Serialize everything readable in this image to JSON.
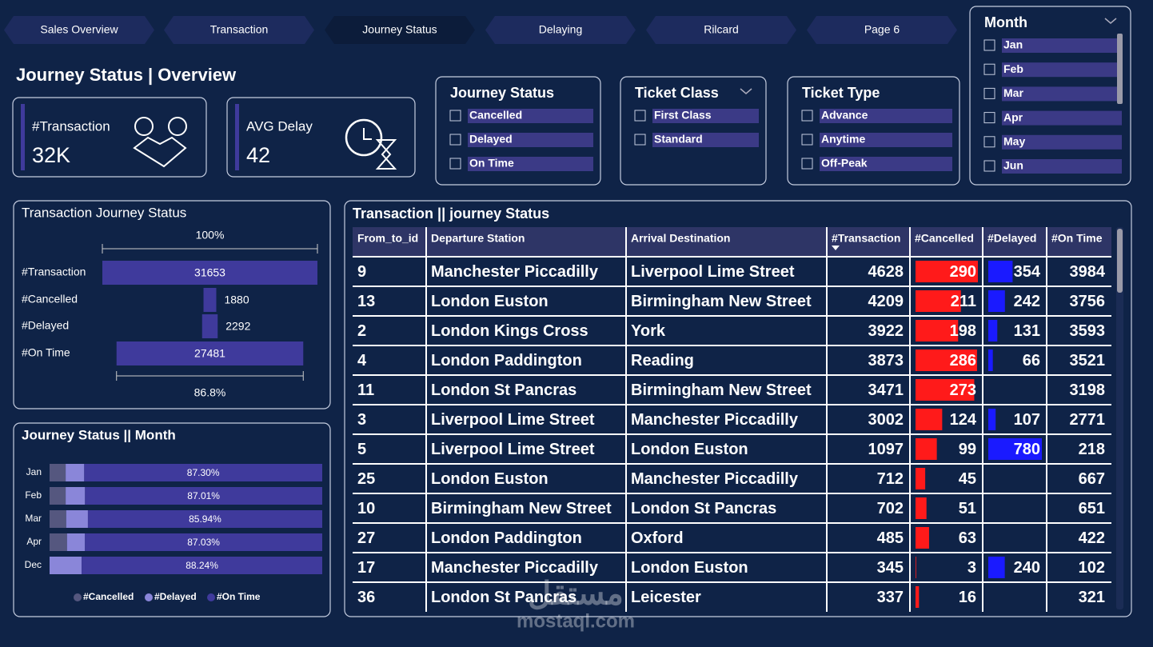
{
  "tabs": [
    "Sales Overview",
    "Transaction",
    "Journey Status",
    "Delaying",
    "Rilcard",
    "Page 6"
  ],
  "active_tab": 2,
  "header": {
    "title": "Journey Status | Overview"
  },
  "kpis": [
    {
      "label": "#Transaction",
      "value": "32K"
    },
    {
      "label": "AVG Delay",
      "value": "42"
    }
  ],
  "slicers": [
    {
      "title": "Journey Status",
      "items": [
        "Cancelled",
        "Delayed",
        "On Time"
      ]
    },
    {
      "title": "Ticket Class",
      "items": [
        "First Class",
        "Standard"
      ]
    },
    {
      "title": "Ticket Type",
      "items": [
        "Advance",
        "Anytime",
        "Off-Peak"
      ]
    },
    {
      "title": "Month",
      "items": [
        "Jan",
        "Feb",
        "Mar",
        "Apr",
        "May",
        "Jun"
      ]
    }
  ],
  "funnel_chart": {
    "title": "Transaction Journey Status",
    "top_label": "100%",
    "bottom_label": "86.8%",
    "categories": [
      "#Transaction",
      "#Cancelled",
      "#Delayed",
      "#On Time"
    ],
    "values": [
      31653,
      1880,
      2292,
      27481
    ],
    "color": "#3f3a9c"
  },
  "month_chart": {
    "title": "Journey Status || Month",
    "categories": [
      "Jan",
      "Feb",
      "Mar",
      "Apr",
      "Dec"
    ],
    "series": [
      {
        "name": "#Cancelled",
        "color": "#55577f",
        "values": [
          5.9,
          5.9,
          6.1,
          6.4,
          0
        ]
      },
      {
        "name": "#Delayed",
        "color": "#8a86d9",
        "values": [
          6.8,
          7.09,
          7.96,
          6.57,
          11.76
        ]
      },
      {
        "name": "#On Time",
        "color": "#3f3a9c",
        "values": [
          87.3,
          87.01,
          85.94,
          87.03,
          88.24
        ],
        "value_labels": [
          "87.30%",
          "87.01%",
          "85.94%",
          "87.03%",
          "88.24%"
        ]
      }
    ]
  },
  "table": {
    "title": "Transaction || journey Status",
    "columns": [
      "From_to_id",
      "Departure Station",
      "Arrival Destination",
      "#Transaction",
      "#Cancelled",
      "#Delayed",
      "#On Time"
    ],
    "cancelled_bar_color": "#ff1a1a",
    "delayed_bar_color": "#1a1aff",
    "rows": [
      [
        9,
        "Manchester Piccadilly",
        "Liverpool Lime Street",
        4628,
        290,
        354,
        3984
      ],
      [
        13,
        "London Euston",
        "Birmingham New Street",
        4209,
        211,
        242,
        3756
      ],
      [
        2,
        "London Kings Cross",
        "York",
        3922,
        198,
        131,
        3593
      ],
      [
        4,
        "London Paddington",
        "Reading",
        3873,
        286,
        66,
        3521
      ],
      [
        11,
        "London St Pancras",
        "Birmingham New Street",
        3471,
        273,
        null,
        3198
      ],
      [
        3,
        "Liverpool Lime Street",
        "Manchester Piccadilly",
        3002,
        124,
        107,
        2771
      ],
      [
        5,
        "Liverpool Lime Street",
        "London Euston",
        1097,
        99,
        780,
        218
      ],
      [
        25,
        "London Euston",
        "Manchester Piccadilly",
        712,
        45,
        null,
        667
      ],
      [
        10,
        "Birmingham New Street",
        "London St Pancras",
        702,
        51,
        null,
        651
      ],
      [
        27,
        "London Paddington",
        "Oxford",
        485,
        63,
        null,
        422
      ],
      [
        17,
        "Manchester Piccadilly",
        "London Euston",
        345,
        3,
        240,
        102
      ],
      [
        36,
        "London St Pancras",
        "Leicester",
        337,
        16,
        null,
        321
      ]
    ]
  },
  "watermark": {
    "arabic": "مستقل",
    "latin": "mostaql.com"
  }
}
